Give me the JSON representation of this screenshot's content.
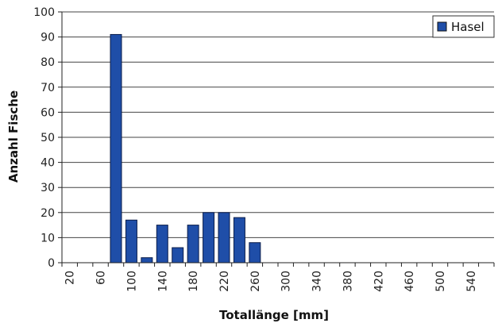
{
  "chart_data": {
    "type": "bar",
    "title": "",
    "xlabel": "Totallänge [mm]",
    "ylabel": "Anzahl Fische",
    "ylim": [
      0,
      100
    ],
    "yticks": [
      0,
      10,
      20,
      30,
      40,
      50,
      60,
      70,
      80,
      90,
      100
    ],
    "grid": true,
    "legend_position": "top-right",
    "categories": [
      "20",
      "40",
      "60",
      "80",
      "100",
      "120",
      "140",
      "160",
      "180",
      "200",
      "220",
      "240",
      "260",
      "280",
      "300",
      "320",
      "340",
      "360",
      "380",
      "400",
      "420",
      "440",
      "460",
      "480",
      "500",
      "520",
      "540",
      "560"
    ],
    "tick_labels": [
      "20",
      "60",
      "100",
      "140",
      "180",
      "220",
      "260",
      "300",
      "340",
      "380",
      "420",
      "460",
      "500",
      "540"
    ],
    "series": [
      {
        "name": "Hasel",
        "color": "#1f4ea8",
        "values": [
          0,
          0,
          0,
          91,
          17,
          2,
          15,
          6,
          15,
          20,
          20,
          18,
          8,
          0,
          0,
          0,
          0,
          0,
          0,
          0,
          0,
          0,
          0,
          0,
          0,
          0,
          0,
          0
        ]
      }
    ]
  }
}
